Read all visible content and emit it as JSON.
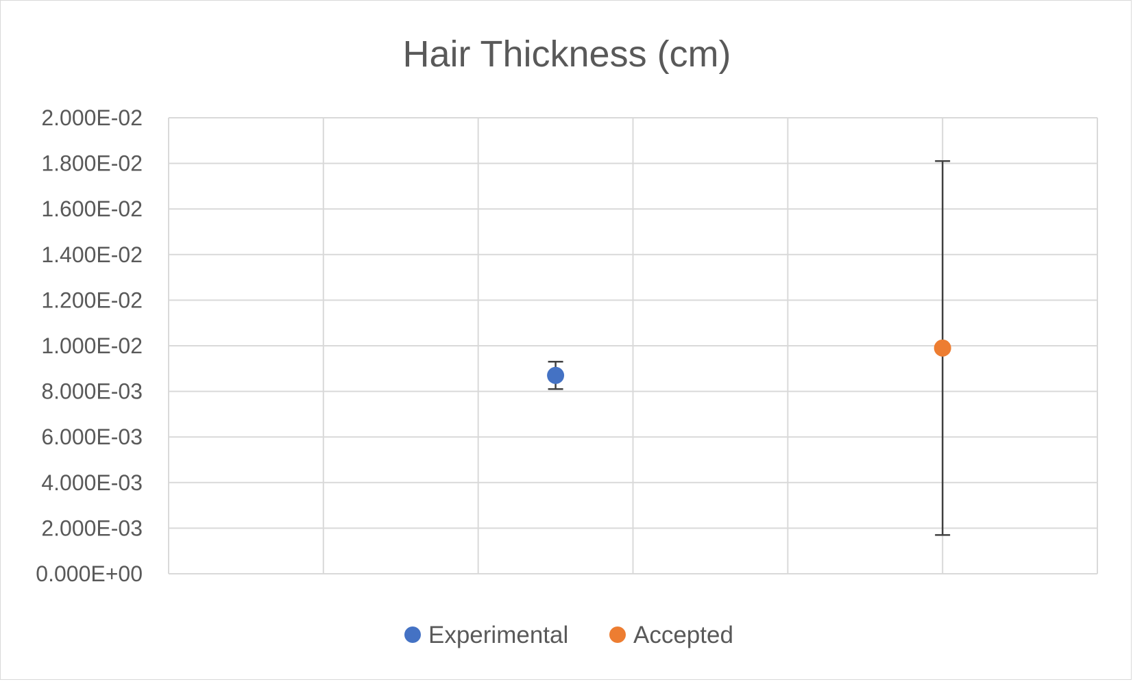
{
  "chart_data": {
    "type": "scatter",
    "title": "Hair Thickness (cm)",
    "xlabel": "",
    "ylabel": "",
    "xlim": [
      0,
      6
    ],
    "ylim": [
      0,
      0.02
    ],
    "y_ticks": [
      {
        "value": 0,
        "label": "0.000E+00"
      },
      {
        "value": 0.002,
        "label": "2.000E-03"
      },
      {
        "value": 0.004,
        "label": "4.000E-03"
      },
      {
        "value": 0.006,
        "label": "6.000E-03"
      },
      {
        "value": 0.008,
        "label": "8.000E-03"
      },
      {
        "value": 0.01,
        "label": "1.000E-02"
      },
      {
        "value": 0.012,
        "label": "1.200E-02"
      },
      {
        "value": 0.014,
        "label": "1.400E-02"
      },
      {
        "value": 0.016,
        "label": "1.600E-02"
      },
      {
        "value": 0.018,
        "label": "1.800E-02"
      },
      {
        "value": 0.02,
        "label": "2.000E-02"
      }
    ],
    "x_gridlines": [
      0,
      1,
      2,
      3,
      4,
      5,
      6
    ],
    "grid": true,
    "legend_position": "bottom",
    "series": [
      {
        "name": "Experimental",
        "color": "#4472C4",
        "x": 2.5,
        "y": 0.0087,
        "error": 0.0006
      },
      {
        "name": "Accepted",
        "color": "#ED7D31",
        "x": 5,
        "y": 0.0099,
        "error": 0.0082
      }
    ]
  }
}
